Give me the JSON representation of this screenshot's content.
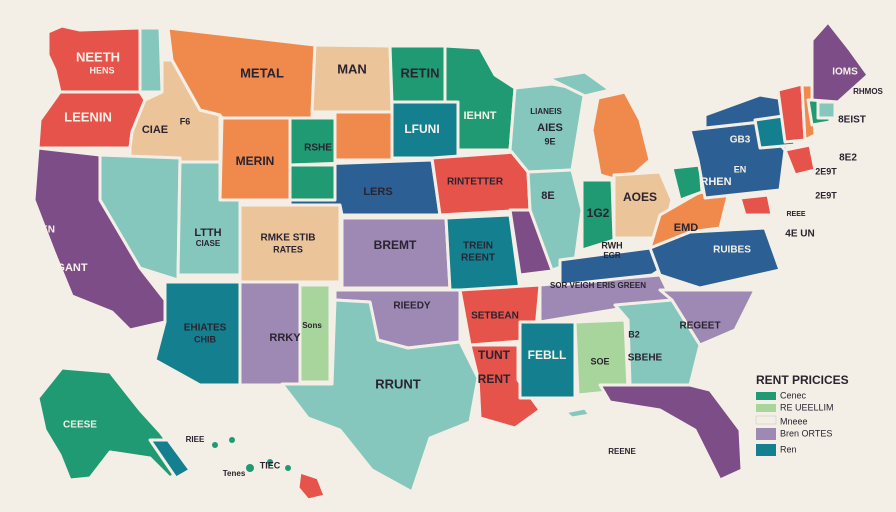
{
  "colors": {
    "background": "#f3efe6",
    "red": "#e5534b",
    "orange": "#ef8a4c",
    "tan": "#ecc49a",
    "green": "#1f9a73",
    "teal": "#14808f",
    "mint": "#86c7bd",
    "purple": "#7d4d87",
    "lavender": "#9d89b3",
    "blue": "#2c5f93",
    "lime": "#a8d59c"
  },
  "states": {
    "wa": {
      "label": "NEETH",
      "sub": "HENS"
    },
    "or": {
      "label": "LEENIN"
    },
    "id": {
      "label": "CIAE",
      "sub": "F6"
    },
    "mt": {
      "label": "METAL"
    },
    "wy": {
      "label": "MERIN"
    },
    "nd": {
      "label": "MAN"
    },
    "sd": {
      "label": "LFUNI"
    },
    "mn_top": {
      "label": "RETIN"
    },
    "mn": {
      "label": "IEHNT"
    },
    "wi": {
      "label": "AIES",
      "sub": "9E"
    },
    "co_n": {
      "label": "RSHE"
    },
    "co": {
      "label": "LTTH",
      "sub": "CIASE"
    },
    "ne": {
      "label": "LERS"
    },
    "ks": {
      "label": "BREMT"
    },
    "ia": {
      "label": "RINTETTER"
    },
    "ut": {
      "label": "RMKE STIB",
      "sub": "RATES"
    },
    "ok": {
      "label": "RIEEDY"
    },
    "mo": {
      "label": "TREIN",
      "sub": "REENT"
    },
    "il": {
      "label": "8E"
    },
    "in": {
      "label": "1G2"
    },
    "oh": {
      "label": "AOES"
    },
    "ca": {
      "label": "GANT",
      "sub": "EN"
    },
    "az": {
      "label": "EHIATES",
      "sub": "CHIB"
    },
    "nm": {
      "label": "RRKY",
      "sub": "Sons"
    },
    "tx": {
      "label": "RRUNT"
    },
    "ar": {
      "label": "SETBEAN"
    },
    "la": {
      "label": "TUNT",
      "sub": "RENT"
    },
    "ms": {
      "label": "FEBLL"
    },
    "al": {
      "label": "SOE"
    },
    "ga": {
      "label": "SBEHE",
      "sub": "B2"
    },
    "tn": {
      "label": "SOR VEIGH ERIS GREEN"
    },
    "nc": {
      "label": "RUIBES"
    },
    "sc": {
      "label": "REGEET"
    },
    "ky": {
      "label": "RWH",
      "sub": "EGR"
    },
    "pa": {
      "label": "EMD",
      "sub": "8CR"
    },
    "ny": {
      "label": "RHEN",
      "sub": "EN"
    },
    "nyw": {
      "label": "GB3"
    },
    "me": {
      "label": "IOMS"
    },
    "ak": {
      "label": "CEESE"
    },
    "hi": {
      "label": "TIEC"
    }
  },
  "annotations": {
    "ne_1": "LIANEIS",
    "ne_2": "8EIST",
    "ne_3": "8E2",
    "ne_4": "2E9T",
    "ne_5": "2E9T",
    "ne_6": "REEE",
    "ne_7": "4E UN",
    "me_rule": "RHMOS",
    "gulf": "REENE",
    "pr": "Tenes",
    "ak_islands": "RIEE"
  },
  "legend": {
    "title": "RENT PRICICES",
    "items": [
      {
        "label": "Cenec",
        "color": "#1f9a73"
      },
      {
        "label": "RE UEELLIM",
        "color": "#a8d59c"
      },
      {
        "label": "Mneee",
        "color": "#f3efe6"
      },
      {
        "label": "Bren ORTES",
        "color": "#9d89b3"
      },
      {
        "label": "Ren",
        "color": "#14808f"
      }
    ]
  }
}
